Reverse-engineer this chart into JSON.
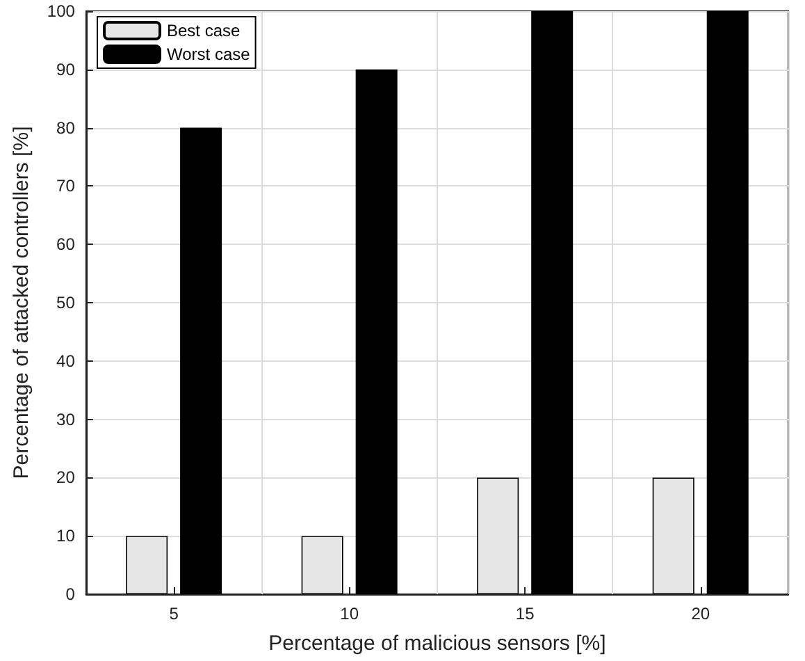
{
  "chart_data": {
    "type": "bar",
    "xlabel": "Percentage of malicious sensors [%]",
    "ylabel": "Percentage of attacked controllers [%]",
    "categories": [
      "5",
      "10",
      "15",
      "20"
    ],
    "series": [
      {
        "name": "Best case",
        "color": "#e6e6e6",
        "values": [
          10,
          10,
          20,
          20
        ]
      },
      {
        "name": "Worst case",
        "color": "#000000",
        "values": [
          80,
          90,
          100,
          100
        ]
      }
    ],
    "ylim": [
      0,
      100
    ],
    "yticks": [
      0,
      10,
      20,
      30,
      40,
      50,
      60,
      70,
      80,
      90,
      100
    ],
    "grid": true,
    "legend": "top left"
  }
}
